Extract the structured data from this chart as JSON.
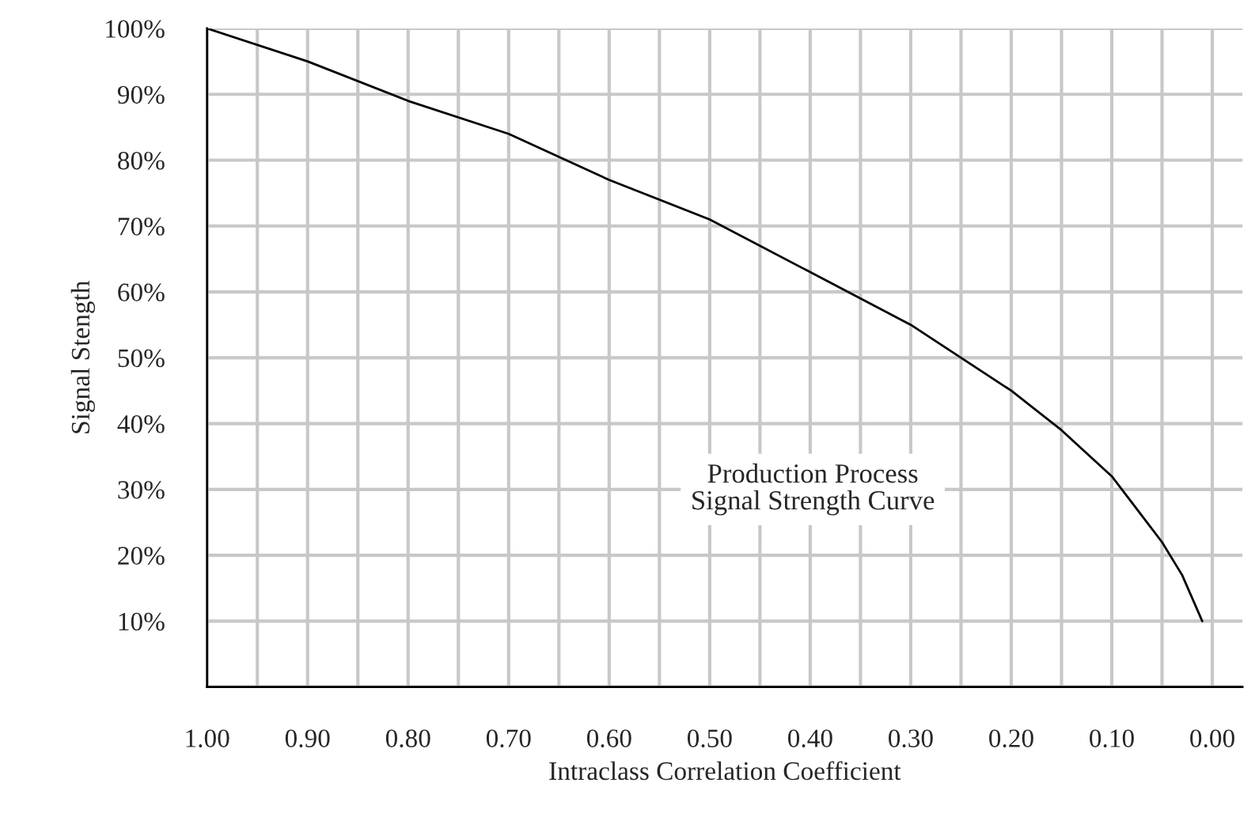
{
  "chart_data": {
    "type": "line",
    "xlabel": "Intraclass Correlation Coefficient",
    "ylabel": "Signal Stength",
    "annotations": [
      "Production Process\nSignal Strength Curve"
    ],
    "series": [
      {
        "color": "#000000",
        "x": [
          1.0,
          0.9,
          0.8,
          0.7,
          0.6,
          0.5,
          0.4,
          0.3,
          0.2,
          0.15,
          0.1,
          0.07,
          0.05,
          0.03,
          0.01
        ],
        "values": [
          100,
          95,
          89,
          84,
          77,
          71,
          63,
          55,
          45,
          39,
          32,
          26,
          22,
          17,
          10
        ]
      }
    ],
    "xlim": [
      1.0,
      -0.03
    ],
    "xticks": [
      {
        "value": 1.0,
        "label": "1.00"
      },
      {
        "value": 0.95,
        "label": null
      },
      {
        "value": 0.9,
        "label": "0.90"
      },
      {
        "value": 0.85,
        "label": null
      },
      {
        "value": 0.8,
        "label": "0.80"
      },
      {
        "value": 0.75,
        "label": null
      },
      {
        "value": 0.7,
        "label": "0.70"
      },
      {
        "value": 0.65,
        "label": null
      },
      {
        "value": 0.6,
        "label": "0.60"
      },
      {
        "value": 0.55,
        "label": null
      },
      {
        "value": 0.5,
        "label": "0.50"
      },
      {
        "value": 0.45,
        "label": null
      },
      {
        "value": 0.4,
        "label": "0.40"
      },
      {
        "value": 0.35,
        "label": null
      },
      {
        "value": 0.3,
        "label": "0.30"
      },
      {
        "value": 0.25,
        "label": null
      },
      {
        "value": 0.2,
        "label": "0.20"
      },
      {
        "value": 0.15,
        "label": null
      },
      {
        "value": 0.1,
        "label": "0.10"
      },
      {
        "value": 0.05,
        "label": null
      },
      {
        "value": 0.0,
        "label": "0.00"
      }
    ],
    "ylim": [
      0,
      100
    ],
    "yticks": [
      {
        "value": 0,
        "label": null
      },
      {
        "value": 10,
        "label": "10%"
      },
      {
        "value": 20,
        "label": "20%"
      },
      {
        "value": 30,
        "label": "30%"
      },
      {
        "value": 40,
        "label": "40%"
      },
      {
        "value": 50,
        "label": "50%"
      },
      {
        "value": 60,
        "label": "60%"
      },
      {
        "value": 70,
        "label": "70%"
      },
      {
        "value": 80,
        "label": "80%"
      },
      {
        "value": 90,
        "label": "90%"
      },
      {
        "value": 100,
        "label": "100%"
      }
    ],
    "grid": true,
    "marker": "none",
    "line_style": "solid",
    "legend": false
  }
}
